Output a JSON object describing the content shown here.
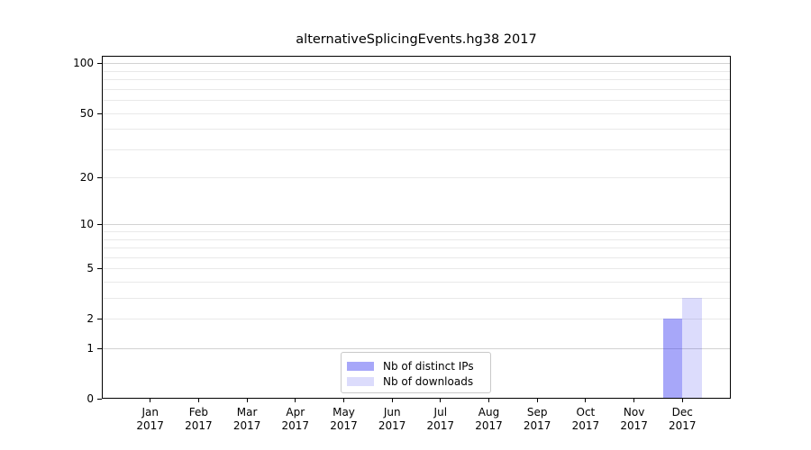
{
  "title": "alternativeSplicingEvents.hg38 2017",
  "chart_data": {
    "type": "bar",
    "title": "alternativeSplicingEvents.hg38 2017",
    "scale": "log10(value+1)",
    "categories": [
      "Jan",
      "Feb",
      "Mar",
      "Apr",
      "May",
      "Jun",
      "Jul",
      "Aug",
      "Sep",
      "Oct",
      "Nov",
      "Dec"
    ],
    "year_label": "2017",
    "series": [
      {
        "name": "Nb of distinct IPs",
        "color": "rgba(45,45,240,0.42)",
        "values": [
          0,
          0,
          0,
          0,
          0,
          0,
          0,
          0,
          0,
          0,
          0,
          2
        ]
      },
      {
        "name": "Nb of downloads",
        "color": "rgba(45,45,240,0.17)",
        "values": [
          0,
          0,
          0,
          0,
          0,
          0,
          0,
          0,
          0,
          0,
          0,
          3
        ]
      }
    ],
    "yticks": [
      0,
      1,
      2,
      5,
      10,
      20,
      50,
      100
    ],
    "grid_major_values": [
      1,
      10,
      100
    ],
    "grid_minor_values": [
      2,
      3,
      4,
      5,
      6,
      7,
      8,
      9,
      20,
      30,
      40,
      50,
      60,
      70,
      80,
      90
    ],
    "ylim": [
      0,
      111
    ],
    "xlim": [
      -1,
      12
    ],
    "bar_width_units": 0.4,
    "grid": "both",
    "legend_position": "lower center",
    "colors": {
      "bar_distinct_ips_on_white": "#a8a8f8",
      "bar_downloads_on_white": "#dcdcf9",
      "grid_major": "#d2d2d2",
      "grid_minor": "#e9e9e9",
      "axis": "#000000",
      "legend_border": "#c9c9c9",
      "background": "#ffffff"
    }
  }
}
